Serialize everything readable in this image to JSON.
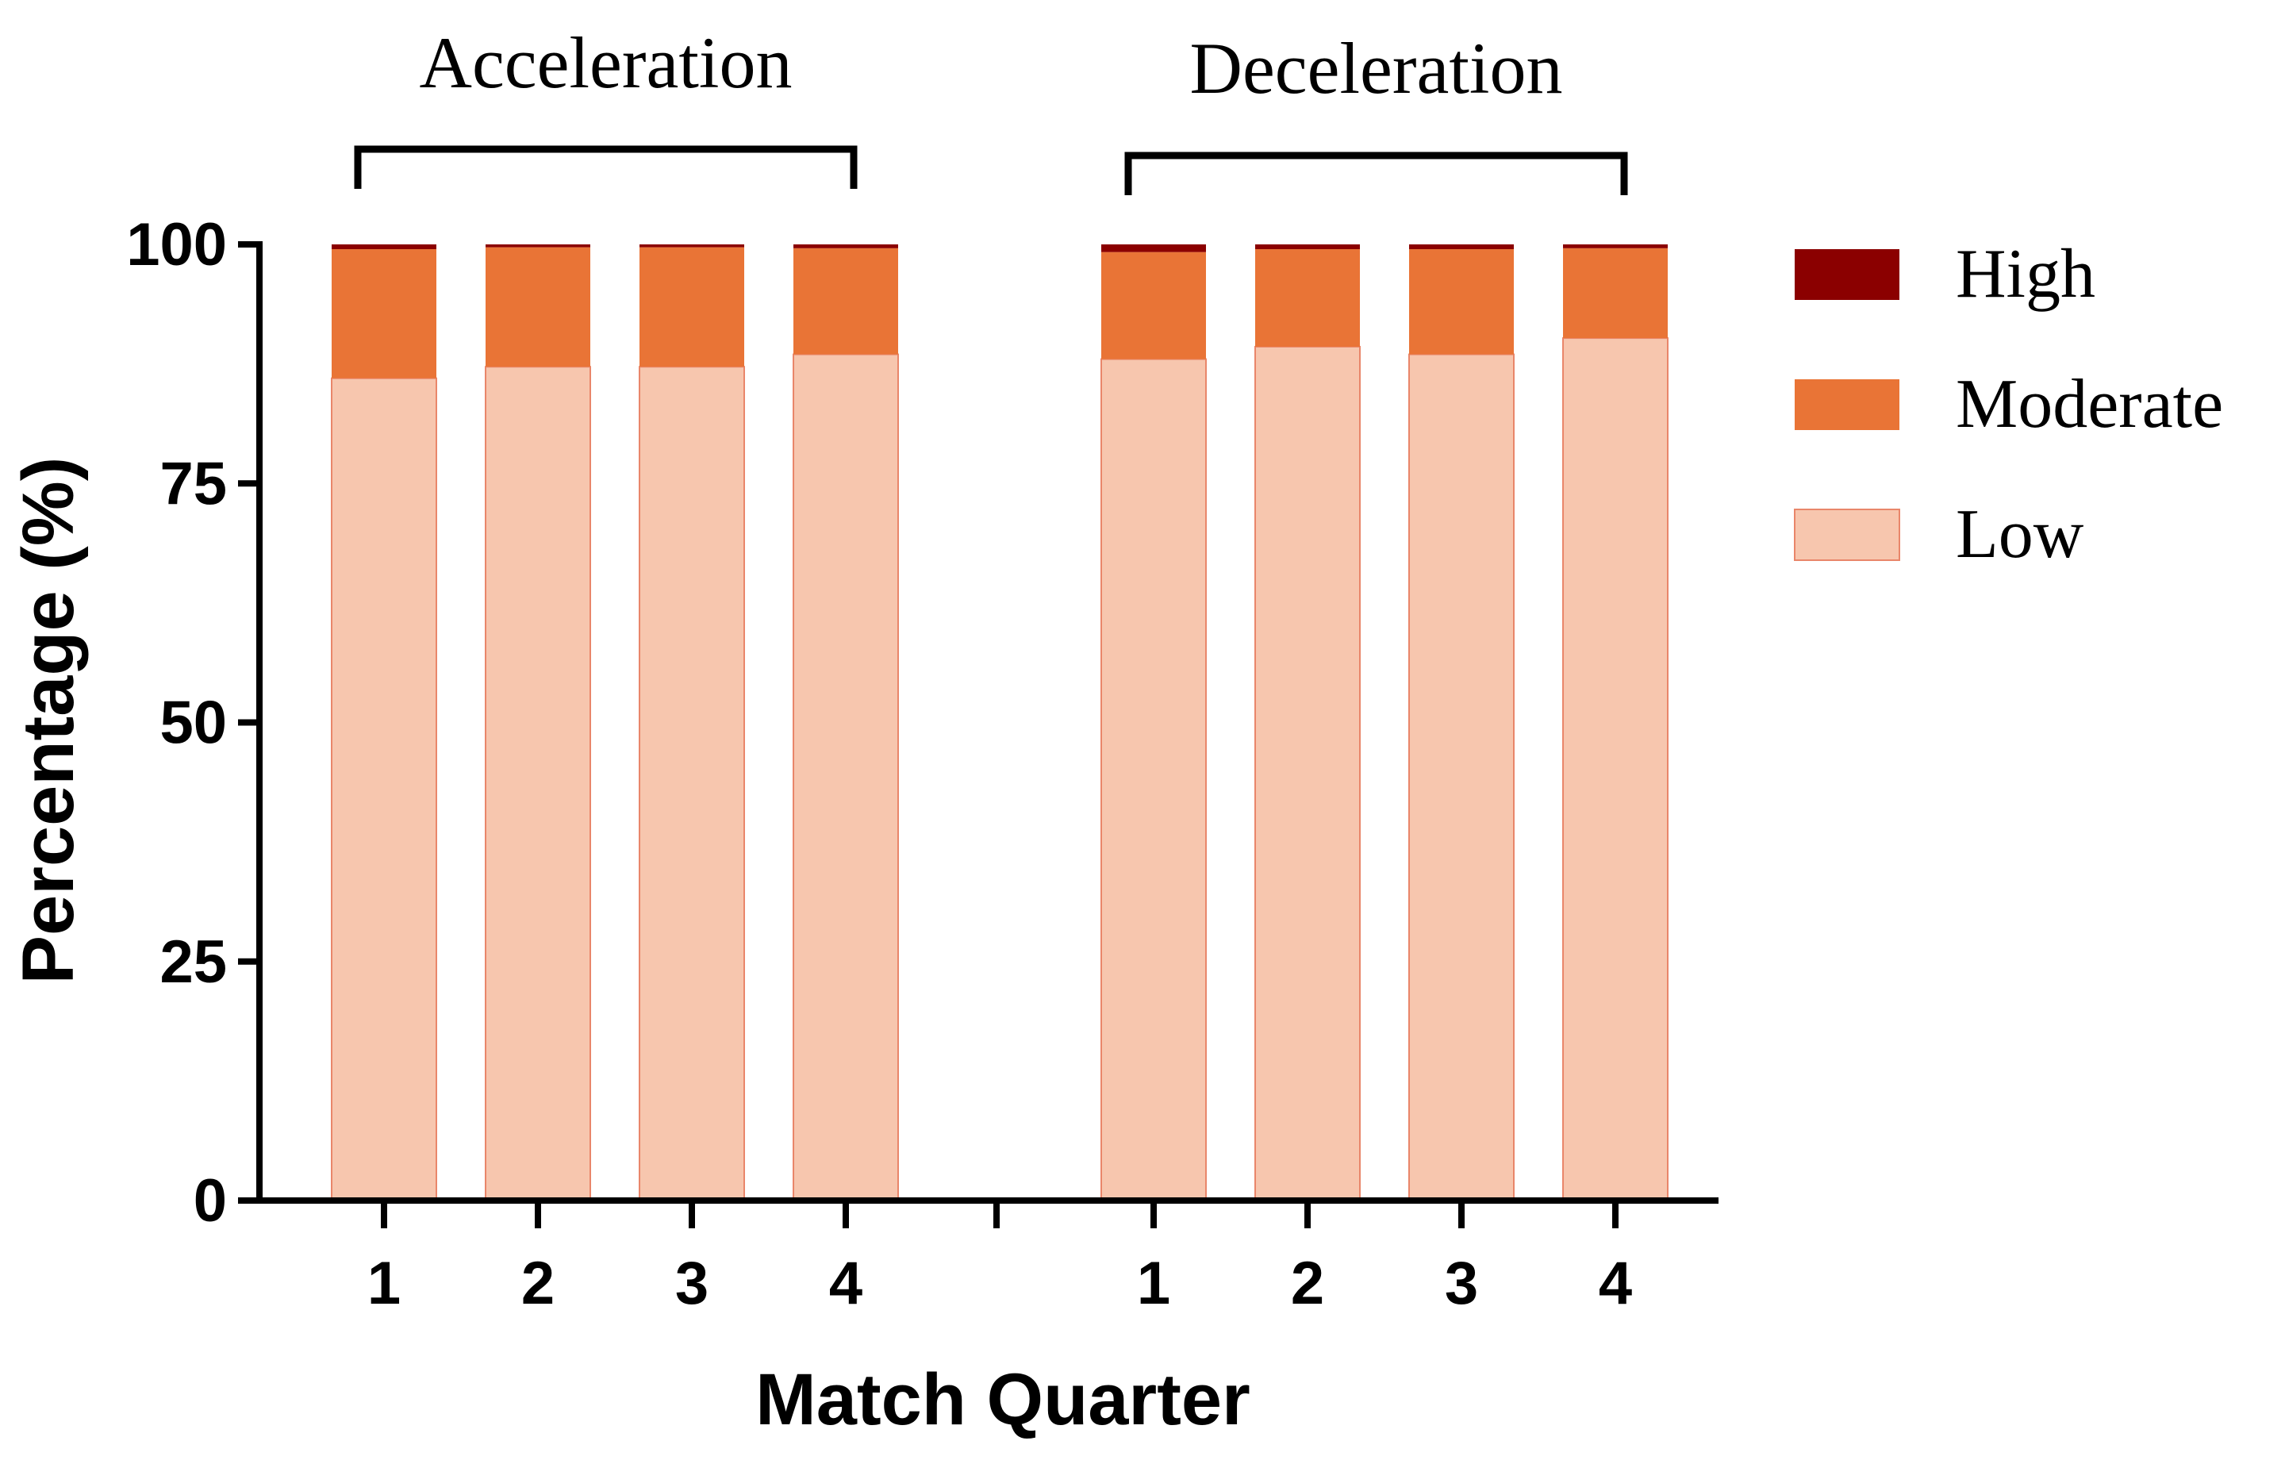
{
  "chart_data": {
    "type": "bar",
    "stacked": true,
    "xlabel": "Match Quarter",
    "ylabel": "Percentage (%)",
    "ylim": [
      0,
      100
    ],
    "yticks": [
      "0",
      "25",
      "50",
      "75",
      "100"
    ],
    "groups": [
      {
        "title": "Acceleration",
        "categories": [
          "1",
          "2",
          "3",
          "4"
        ]
      },
      {
        "title": "Deceleration",
        "categories": [
          "1",
          "2",
          "3",
          "4"
        ]
      }
    ],
    "series": [
      {
        "name": "Low",
        "color": "#F7C6AE",
        "values": [
          86.0,
          87.2,
          87.2,
          88.5,
          88.0,
          89.3,
          88.5,
          90.2
        ]
      },
      {
        "name": "Moderate",
        "color": "#E97436",
        "values": [
          13.5,
          12.5,
          12.5,
          11.1,
          11.2,
          10.2,
          11.0,
          9.4
        ]
      },
      {
        "name": "High",
        "color": "#8B0000",
        "values": [
          0.5,
          0.3,
          0.3,
          0.4,
          0.8,
          0.5,
          0.5,
          0.4
        ]
      }
    ],
    "legend": {
      "position": "top-right",
      "order": [
        "High",
        "Moderate",
        "Low"
      ]
    },
    "grid": false
  }
}
